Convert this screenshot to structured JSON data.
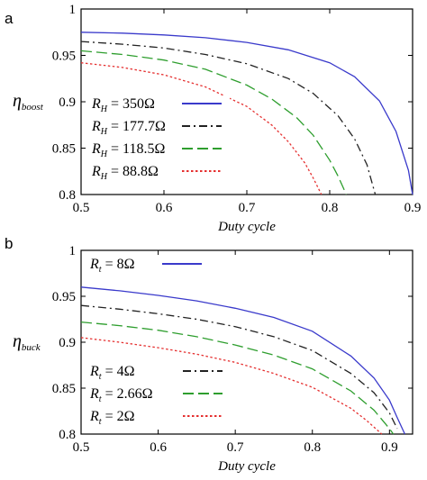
{
  "chart_data": [
    {
      "type": "line",
      "panel_label": "a",
      "xlabel": "Duty cycle",
      "ylabel_main": "η",
      "ylabel_sub": "boost",
      "xlim": [
        0.5,
        0.9
      ],
      "ylim": [
        0.8,
        1.0
      ],
      "xticks": [
        "0.5",
        "0.6",
        "0.7",
        "0.8",
        "0.9"
      ],
      "yticks": [
        "0.8",
        "0.85",
        "0.9",
        "0.95",
        "1"
      ],
      "legend_position": "bottom-left",
      "series": [
        {
          "name": "R_H = 350Ω",
          "sym": "R",
          "sub": "H",
          "value": " = 350Ω",
          "color": "#3a3acb",
          "style": "solid",
          "x": [
            0.5,
            0.55,
            0.6,
            0.65,
            0.7,
            0.75,
            0.8,
            0.83,
            0.86,
            0.88,
            0.895,
            0.9
          ],
          "y": [
            0.975,
            0.974,
            0.972,
            0.969,
            0.964,
            0.956,
            0.942,
            0.927,
            0.901,
            0.868,
            0.826,
            0.8
          ]
        },
        {
          "name": "R_H = 177.7Ω",
          "sym": "R",
          "sub": "H",
          "value": " = 177.7Ω",
          "color": "#222222",
          "style": "dashdot",
          "x": [
            0.5,
            0.55,
            0.6,
            0.65,
            0.7,
            0.75,
            0.78,
            0.81,
            0.83,
            0.845,
            0.855
          ],
          "y": [
            0.965,
            0.962,
            0.958,
            0.951,
            0.941,
            0.925,
            0.909,
            0.885,
            0.86,
            0.832,
            0.8
          ]
        },
        {
          "name": "R_H = 118.5Ω",
          "sym": "R",
          "sub": "H",
          "value": " = 118.5Ω",
          "color": "#2e9e2e",
          "style": "dashed",
          "x": [
            0.5,
            0.55,
            0.6,
            0.65,
            0.7,
            0.73,
            0.76,
            0.78,
            0.8,
            0.81,
            0.82
          ],
          "y": [
            0.955,
            0.951,
            0.945,
            0.935,
            0.918,
            0.903,
            0.883,
            0.864,
            0.837,
            0.82,
            0.8
          ]
        },
        {
          "name": "R_H = 88.8Ω",
          "sym": "R",
          "sub": "H",
          "value": " = 88.8Ω",
          "color": "#e53030",
          "style": "dotted",
          "x": [
            0.5,
            0.55,
            0.6,
            0.65,
            0.7,
            0.73,
            0.75,
            0.77,
            0.78,
            0.79
          ],
          "y": [
            0.942,
            0.937,
            0.929,
            0.916,
            0.895,
            0.875,
            0.857,
            0.834,
            0.818,
            0.8
          ]
        }
      ]
    },
    {
      "type": "line",
      "panel_label": "b",
      "xlabel": "Duty cycle",
      "ylabel_main": "η",
      "ylabel_sub": "buck",
      "xlim": [
        0.5,
        0.93
      ],
      "ylim": [
        0.8,
        1.0
      ],
      "xticks": [
        "0.5",
        "0.6",
        "0.7",
        "0.8",
        "0.9"
      ],
      "yticks": [
        "0.8",
        "0.85",
        "0.9",
        "0.95",
        "1"
      ],
      "legend_position": "top-left and bottom-left",
      "series": [
        {
          "name": "R_t = 8Ω",
          "sym": "R",
          "sub": "t",
          "value": " = 8Ω",
          "color": "#3a3acb",
          "style": "solid",
          "x": [
            0.5,
            0.55,
            0.6,
            0.65,
            0.7,
            0.75,
            0.8,
            0.85,
            0.88,
            0.9,
            0.91,
            0.92
          ],
          "y": [
            0.96,
            0.956,
            0.951,
            0.945,
            0.937,
            0.927,
            0.912,
            0.885,
            0.861,
            0.837,
            0.818,
            0.8
          ]
        },
        {
          "name": "R_t = 4Ω",
          "sym": "R",
          "sub": "t",
          "value": " = 4Ω",
          "color": "#222222",
          "style": "dashdot",
          "x": [
            0.5,
            0.55,
            0.6,
            0.65,
            0.7,
            0.75,
            0.8,
            0.85,
            0.88,
            0.9,
            0.91
          ],
          "y": [
            0.94,
            0.936,
            0.931,
            0.925,
            0.917,
            0.906,
            0.891,
            0.866,
            0.845,
            0.823,
            0.806
          ]
        },
        {
          "name": "R_t = 2.66Ω",
          "sym": "R",
          "sub": "t",
          "value": " = 2.66Ω",
          "color": "#2e9e2e",
          "style": "dashed",
          "x": [
            0.5,
            0.55,
            0.6,
            0.65,
            0.7,
            0.75,
            0.8,
            0.85,
            0.88,
            0.9,
            0.905
          ],
          "y": [
            0.922,
            0.918,
            0.913,
            0.906,
            0.897,
            0.886,
            0.871,
            0.847,
            0.826,
            0.806,
            0.8
          ]
        },
        {
          "name": "R_t = 2Ω",
          "sym": "R",
          "sub": "t",
          "value": " = 2Ω",
          "color": "#e53030",
          "style": "dotted",
          "x": [
            0.5,
            0.55,
            0.6,
            0.65,
            0.7,
            0.75,
            0.8,
            0.85,
            0.87,
            0.89
          ],
          "y": [
            0.905,
            0.9,
            0.894,
            0.887,
            0.878,
            0.866,
            0.851,
            0.828,
            0.815,
            0.8
          ]
        }
      ]
    }
  ]
}
